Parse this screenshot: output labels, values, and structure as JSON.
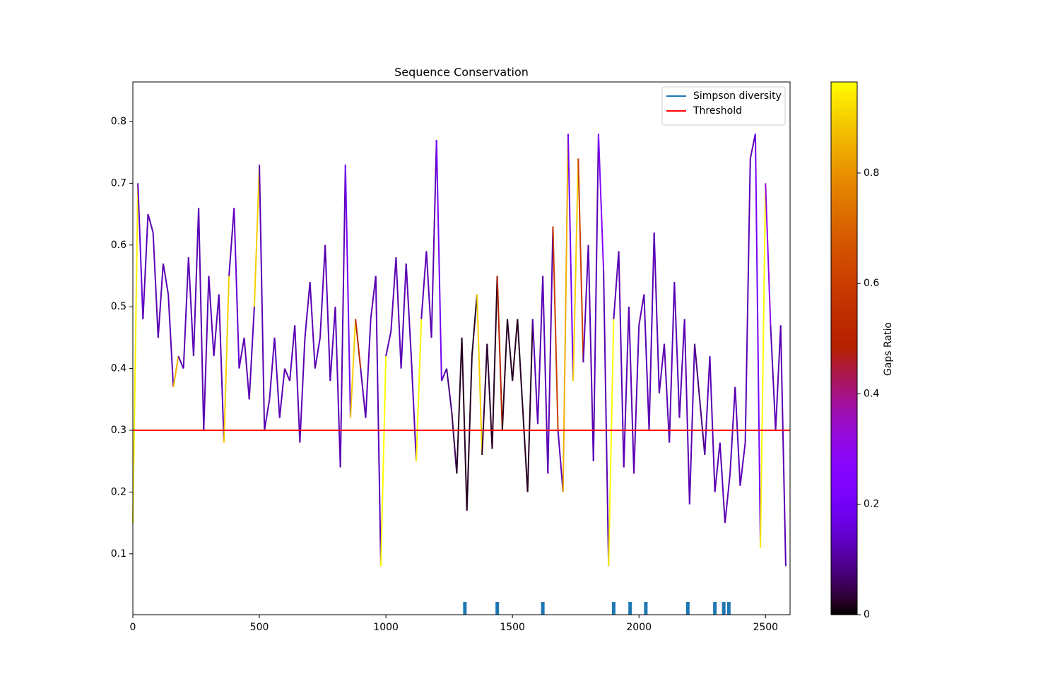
{
  "chart_data": {
    "type": "line",
    "title": "Sequence Conservation",
    "x": [
      0,
      20,
      40,
      60,
      80,
      100,
      120,
      140,
      160,
      180,
      200,
      220,
      240,
      260,
      280,
      300,
      320,
      340,
      360,
      380,
      400,
      420,
      440,
      460,
      480,
      500,
      520,
      540,
      560,
      580,
      600,
      620,
      640,
      660,
      680,
      700,
      720,
      740,
      760,
      780,
      800,
      820,
      840,
      860,
      880,
      900,
      920,
      940,
      960,
      980,
      1000,
      1020,
      1040,
      1060,
      1080,
      1100,
      1120,
      1140,
      1160,
      1180,
      1200,
      1220,
      1240,
      1260,
      1280,
      1300,
      1320,
      1340,
      1360,
      1380,
      1400,
      1420,
      1440,
      1460,
      1480,
      1500,
      1520,
      1540,
      1560,
      1580,
      1600,
      1620,
      1640,
      1660,
      1680,
      1700,
      1720,
      1740,
      1760,
      1780,
      1800,
      1820,
      1840,
      1860,
      1880,
      1900,
      1920,
      1940,
      1960,
      1980,
      2000,
      2020,
      2040,
      2060,
      2080,
      2100,
      2120,
      2140,
      2160,
      2180,
      2200,
      2220,
      2240,
      2260,
      2280,
      2300,
      2320,
      2340,
      2360,
      2380,
      2400,
      2420,
      2440,
      2460,
      2480,
      2500,
      2520,
      2540,
      2560,
      2580
    ],
    "series": [
      {
        "name": "Simpson diversity",
        "color": "#1f77b4",
        "values": [
          0.15,
          0.7,
          0.48,
          0.65,
          0.62,
          0.45,
          0.57,
          0.52,
          0.37,
          0.42,
          0.4,
          0.58,
          0.42,
          0.66,
          0.3,
          0.55,
          0.42,
          0.52,
          0.28,
          0.55,
          0.66,
          0.4,
          0.45,
          0.35,
          0.5,
          0.73,
          0.3,
          0.35,
          0.45,
          0.32,
          0.4,
          0.38,
          0.47,
          0.28,
          0.45,
          0.54,
          0.4,
          0.45,
          0.6,
          0.38,
          0.5,
          0.24,
          0.73,
          0.32,
          0.48,
          0.4,
          0.32,
          0.48,
          0.55,
          0.08,
          0.42,
          0.46,
          0.58,
          0.4,
          0.57,
          0.42,
          0.25,
          0.48,
          0.59,
          0.45,
          0.77,
          0.38,
          0.4,
          0.33,
          0.23,
          0.45,
          0.17,
          0.42,
          0.52,
          0.26,
          0.44,
          0.27,
          0.55,
          0.3,
          0.48,
          0.38,
          0.48,
          0.34,
          0.2,
          0.48,
          0.31,
          0.55,
          0.23,
          0.63,
          0.3,
          0.2,
          0.78,
          0.38,
          0.74,
          0.41,
          0.6,
          0.25,
          0.78,
          0.56,
          0.08,
          0.48,
          0.59,
          0.24,
          0.5,
          0.23,
          0.47,
          0.52,
          0.3,
          0.62,
          0.36,
          0.44,
          0.28,
          0.54,
          0.32,
          0.48,
          0.18,
          0.44,
          0.35,
          0.26,
          0.42,
          0.2,
          0.28,
          0.15,
          0.23,
          0.37,
          0.21,
          0.28,
          0.74,
          0.78,
          0.11,
          0.7,
          0.47,
          0.3,
          0.47,
          0.08
        ],
        "gaps_ratio": [
          0.95,
          0.15,
          0.12,
          0.12,
          0.12,
          0.12,
          0.12,
          0.12,
          0.85,
          0.12,
          0.12,
          0.12,
          0.12,
          0.12,
          0.12,
          0.12,
          0.12,
          0.12,
          0.9,
          0.12,
          0.15,
          0.12,
          0.12,
          0.12,
          0.9,
          0.12,
          0.12,
          0.12,
          0.12,
          0.12,
          0.12,
          0.12,
          0.12,
          0.12,
          0.12,
          0.12,
          0.12,
          0.12,
          0.12,
          0.12,
          0.12,
          0.12,
          0.2,
          0.9,
          0.5,
          0.12,
          0.12,
          0.12,
          0.12,
          0.96,
          0.12,
          0.12,
          0.12,
          0.12,
          0.12,
          0.12,
          0.95,
          0.12,
          0.12,
          0.12,
          0.2,
          0.12,
          0.08,
          0.05,
          0.02,
          0.02,
          0.02,
          0.02,
          0.9,
          0.03,
          0.03,
          0.02,
          0.5,
          0.02,
          0.02,
          0.02,
          0.02,
          0.02,
          0.02,
          0.12,
          0.12,
          0.12,
          0.12,
          0.6,
          0.12,
          0.85,
          0.2,
          0.9,
          0.6,
          0.12,
          0.12,
          0.12,
          0.25,
          0.12,
          0.96,
          0.12,
          0.12,
          0.12,
          0.12,
          0.12,
          0.12,
          0.12,
          0.12,
          0.12,
          0.12,
          0.12,
          0.12,
          0.12,
          0.12,
          0.12,
          0.12,
          0.08,
          0.08,
          0.12,
          0.12,
          0.12,
          0.12,
          0.12,
          0.12,
          0.12,
          0.12,
          0.12,
          0.12,
          0.2,
          0.96,
          0.3,
          0.12,
          0.12,
          0.12,
          0.95
        ],
        "marker_positions": [
          1312,
          1440,
          1620,
          1900,
          1965,
          2027,
          2193,
          2300,
          2335,
          2355
        ]
      },
      {
        "name": "Threshold",
        "color": "#ff0000",
        "threshold": 0.3
      }
    ],
    "xlim": [
      0,
      2597
    ],
    "xticks": [
      0,
      500,
      1000,
      1500,
      2000,
      2500
    ],
    "ylim": [
      0.0014,
      0.864
    ],
    "yticks": [
      0.1,
      0.2,
      0.3,
      0.4,
      0.5,
      0.6,
      0.7,
      0.8
    ],
    "colormap": "gnuplot",
    "colorbar_label": "Gaps Ratio",
    "clim": [
      0,
      0.965
    ],
    "cticks": [
      0.0,
      0.2,
      0.4,
      0.6,
      0.8
    ],
    "legend": "upper right"
  }
}
